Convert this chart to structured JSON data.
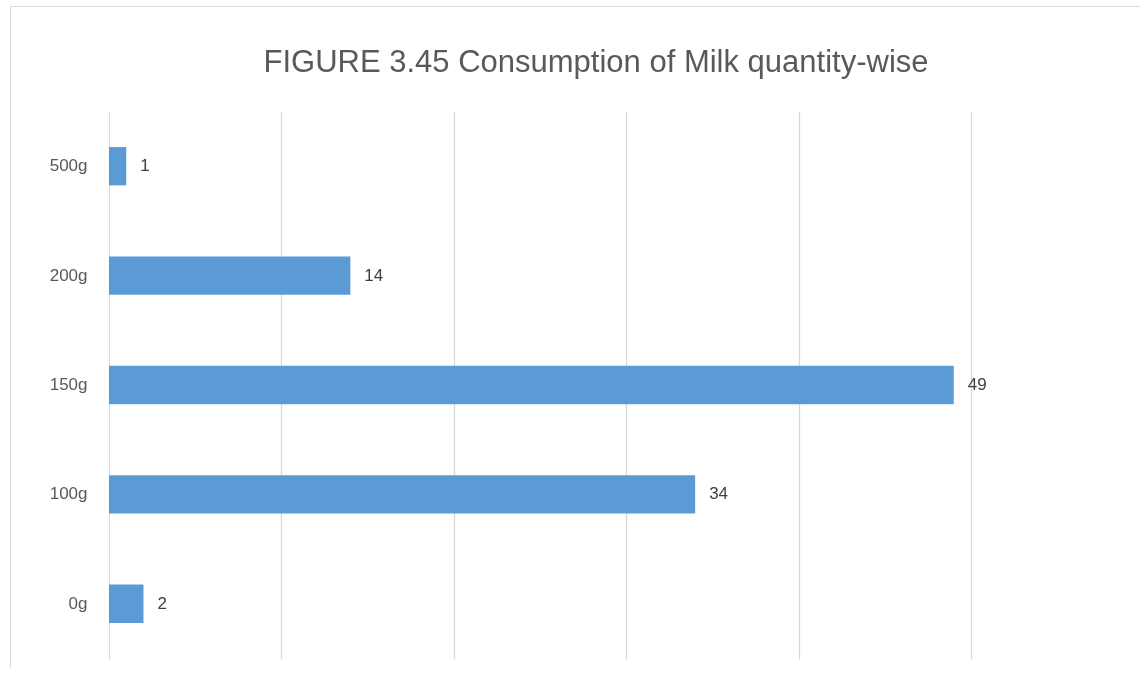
{
  "chart_data": {
    "type": "bar",
    "orientation": "horizontal",
    "title": "FIGURE 3.45 Consumption of Milk quantity-wise",
    "categories": [
      "500g",
      "200g",
      "150g",
      "100g",
      "0g"
    ],
    "values": [
      1,
      14,
      49,
      34,
      2
    ],
    "color": "#5b9bd5",
    "xlim": [
      0,
      50
    ],
    "xticks": [
      {
        "value": 0,
        "label": null
      },
      {
        "value": 10,
        "label": null
      },
      {
        "value": 20,
        "label": null
      },
      {
        "value": 30,
        "label": null
      },
      {
        "value": 40,
        "label": null
      },
      {
        "value": 50,
        "label": null
      }
    ],
    "tick_labels": "y",
    "grid": "x",
    "data_labels": true
  }
}
